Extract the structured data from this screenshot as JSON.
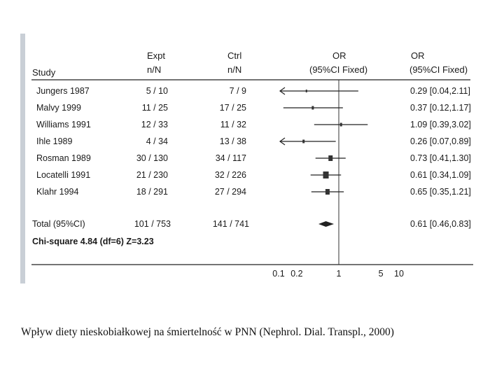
{
  "header": {
    "study": "Study",
    "expt_line1": "Expt",
    "expt_line2": "n/N",
    "ctrl_line1": "Ctrl",
    "ctrl_line2": "n/N",
    "or_line1": "OR",
    "or_line2": "(95%CI Fixed)",
    "orv_line1": "OR",
    "orv_line2": "(95%CI Fixed)"
  },
  "chart_data": {
    "type": "forest",
    "x_scale": "log",
    "x_ticks": [
      0.1,
      0.2,
      1,
      5,
      10
    ],
    "x_tick_labels": [
      "0.1",
      "0.2",
      "1",
      "5",
      "10"
    ],
    "reference_line": 1,
    "studies": [
      {
        "name": "Jungers 1987",
        "expt": "5 / 10",
        "ctrl": "7 / 9",
        "or": 0.29,
        "lo": 0.04,
        "hi": 2.11,
        "or_text": "0.29 [0.04,2.11]",
        "truncated_left": true,
        "weight_box": 2
      },
      {
        "name": "Malvy 1999",
        "expt": "11 / 25",
        "ctrl": "17 / 25",
        "or": 0.37,
        "lo": 0.12,
        "hi": 1.17,
        "or_text": "0.37 [0.12,1.17]",
        "truncated_left": false,
        "weight_box": 3
      },
      {
        "name": "Williams 1991",
        "expt": "12 / 33",
        "ctrl": "11 / 32",
        "or": 1.09,
        "lo": 0.39,
        "hi": 3.02,
        "or_text": "1.09 [0.39,3.02]",
        "truncated_left": false,
        "weight_box": 3
      },
      {
        "name": "Ihle 1989",
        "expt": "4 / 34",
        "ctrl": "13 / 38",
        "or": 0.26,
        "lo": 0.07,
        "hi": 0.89,
        "or_text": "0.26 [0.07,0.89]",
        "truncated_left": true,
        "weight_box": 3
      },
      {
        "name": "Rosman 1989",
        "expt": "30 / 130",
        "ctrl": "34 / 117",
        "or": 0.73,
        "lo": 0.41,
        "hi": 1.3,
        "or_text": "0.73 [0.41,1.30]",
        "truncated_left": false,
        "weight_box": 6
      },
      {
        "name": "Locatelli 1991",
        "expt": "21 / 230",
        "ctrl": "32 / 226",
        "or": 0.61,
        "lo": 0.34,
        "hi": 1.09,
        "or_text": "0.61 [0.34,1.09]",
        "truncated_left": false,
        "weight_box": 8
      },
      {
        "name": "Klahr 1994",
        "expt": "18 / 291",
        "ctrl": "27 / 294",
        "or": 0.65,
        "lo": 0.35,
        "hi": 1.21,
        "or_text": "0.65 [0.35,1.21]",
        "truncated_left": false,
        "weight_box": 6
      }
    ],
    "total": {
      "name": "Total (95%CI)",
      "expt": "101 / 753",
      "ctrl": "141 / 741",
      "or": 0.61,
      "lo": 0.46,
      "hi": 0.83,
      "or_text": "0.61 [0.46,0.83]"
    },
    "heterogeneity": "Chi-square 4.84 (df=6)  Z=3.23"
  },
  "caption": "Wpływ diety nieskobiałkowej na śmiertelność w PNN (Nephrol. Dial. Transpl., 2000)"
}
